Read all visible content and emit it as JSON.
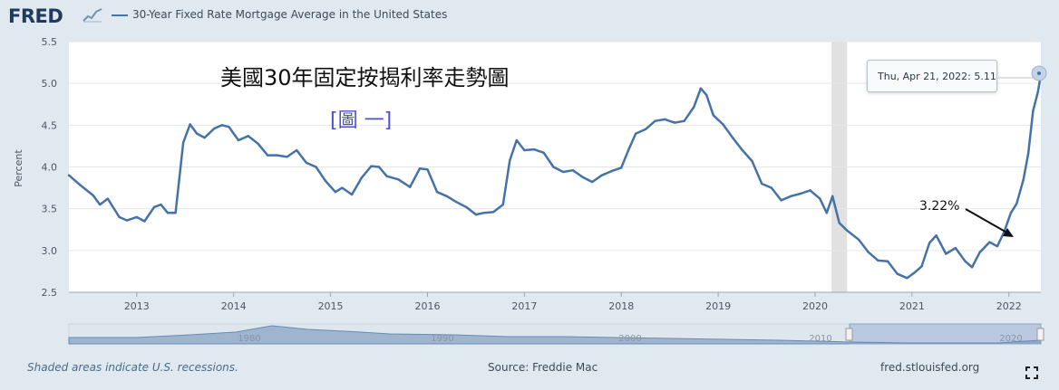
{
  "header": {
    "logo_text": "FRED",
    "series_title": "30-Year Fixed Rate Mortgage Average in the United States",
    "series_color": "#4572a7"
  },
  "annotations": {
    "title": "美國30年固定按揭利率走勢圖",
    "subtitle": "[圖 一]",
    "note_value": "3.22%"
  },
  "tooltip": {
    "date": "Thu, Apr 21, 2022:",
    "value": "5.11"
  },
  "footer": {
    "recession_note": "Shaded areas indicate U.S. recessions.",
    "source": "Source: Freddie Mac",
    "site": "fred.stlouisfed.org"
  },
  "navigator": {
    "labels": [
      "1980",
      "1990",
      "2000",
      "2010",
      "2020"
    ]
  },
  "chart_data": {
    "type": "line",
    "title": "30-Year Fixed Rate Mortgage Average in the United States",
    "ylabel": "Percent",
    "xlabel": "",
    "ylim": [
      2.5,
      5.5
    ],
    "xlim": [
      2012.3,
      2022.33
    ],
    "yticks": [
      2.5,
      3.0,
      3.5,
      4.0,
      4.5,
      5.0,
      5.5
    ],
    "xticks": [
      2013,
      2014,
      2015,
      2016,
      2017,
      2018,
      2019,
      2020,
      2021,
      2022
    ],
    "grid": true,
    "recession": {
      "start": 2020.17,
      "end": 2020.33
    },
    "series": [
      {
        "color": "#4572a7",
        "x": [
          2012.3,
          2012.42,
          2012.55,
          2012.62,
          2012.7,
          2012.82,
          2012.9,
          2013.0,
          2013.08,
          2013.18,
          2013.25,
          2013.32,
          2013.4,
          2013.48,
          2013.55,
          2013.62,
          2013.7,
          2013.8,
          2013.88,
          2013.95,
          2014.05,
          2014.15,
          2014.25,
          2014.35,
          2014.45,
          2014.55,
          2014.65,
          2014.75,
          2014.85,
          2014.95,
          2015.05,
          2015.12,
          2015.22,
          2015.32,
          2015.42,
          2015.5,
          2015.58,
          2015.7,
          2015.82,
          2015.92,
          2016.0,
          2016.1,
          2016.2,
          2016.3,
          2016.4,
          2016.5,
          2016.58,
          2016.68,
          2016.78,
          2016.85,
          2016.92,
          2017.0,
          2017.1,
          2017.2,
          2017.3,
          2017.4,
          2017.5,
          2017.6,
          2017.7,
          2017.8,
          2017.9,
          2018.0,
          2018.08,
          2018.15,
          2018.25,
          2018.35,
          2018.45,
          2018.55,
          2018.65,
          2018.75,
          2018.82,
          2018.88,
          2018.95,
          2019.05,
          2019.15,
          2019.25,
          2019.35,
          2019.45,
          2019.55,
          2019.65,
          2019.75,
          2019.85,
          2019.95,
          2020.05,
          2020.12,
          2020.18,
          2020.25,
          2020.33,
          2020.45,
          2020.55,
          2020.65,
          2020.75,
          2020.85,
          2020.95,
          2021.02,
          2021.1,
          2021.18,
          2021.25,
          2021.35,
          2021.45,
          2021.55,
          2021.62,
          2021.7,
          2021.8,
          2021.88,
          2021.95,
          2022.02,
          2022.08,
          2022.15,
          2022.2,
          2022.25,
          2022.3,
          2022.33
        ],
        "values": [
          3.9,
          3.78,
          3.66,
          3.55,
          3.62,
          3.4,
          3.36,
          3.4,
          3.35,
          3.52,
          3.55,
          3.45,
          3.45,
          4.29,
          4.51,
          4.4,
          4.35,
          4.46,
          4.5,
          4.48,
          4.32,
          4.37,
          4.28,
          4.14,
          4.14,
          4.12,
          4.2,
          4.05,
          4.0,
          3.83,
          3.7,
          3.75,
          3.67,
          3.87,
          4.01,
          4.0,
          3.89,
          3.85,
          3.76,
          3.98,
          3.97,
          3.7,
          3.65,
          3.58,
          3.52,
          3.43,
          3.45,
          3.46,
          3.55,
          4.08,
          4.32,
          4.2,
          4.21,
          4.17,
          4.0,
          3.94,
          3.96,
          3.88,
          3.82,
          3.9,
          3.95,
          3.99,
          4.22,
          4.4,
          4.45,
          4.55,
          4.57,
          4.53,
          4.55,
          4.72,
          4.94,
          4.86,
          4.62,
          4.51,
          4.35,
          4.2,
          4.07,
          3.8,
          3.75,
          3.6,
          3.65,
          3.68,
          3.72,
          3.62,
          3.45,
          3.65,
          3.33,
          3.24,
          3.13,
          2.98,
          2.88,
          2.87,
          2.72,
          2.67,
          2.73,
          2.81,
          3.09,
          3.18,
          2.96,
          3.03,
          2.87,
          2.8,
          2.98,
          3.1,
          3.05,
          3.22,
          3.45,
          3.56,
          3.85,
          4.16,
          4.67,
          4.9,
          5.11
        ]
      }
    ]
  }
}
